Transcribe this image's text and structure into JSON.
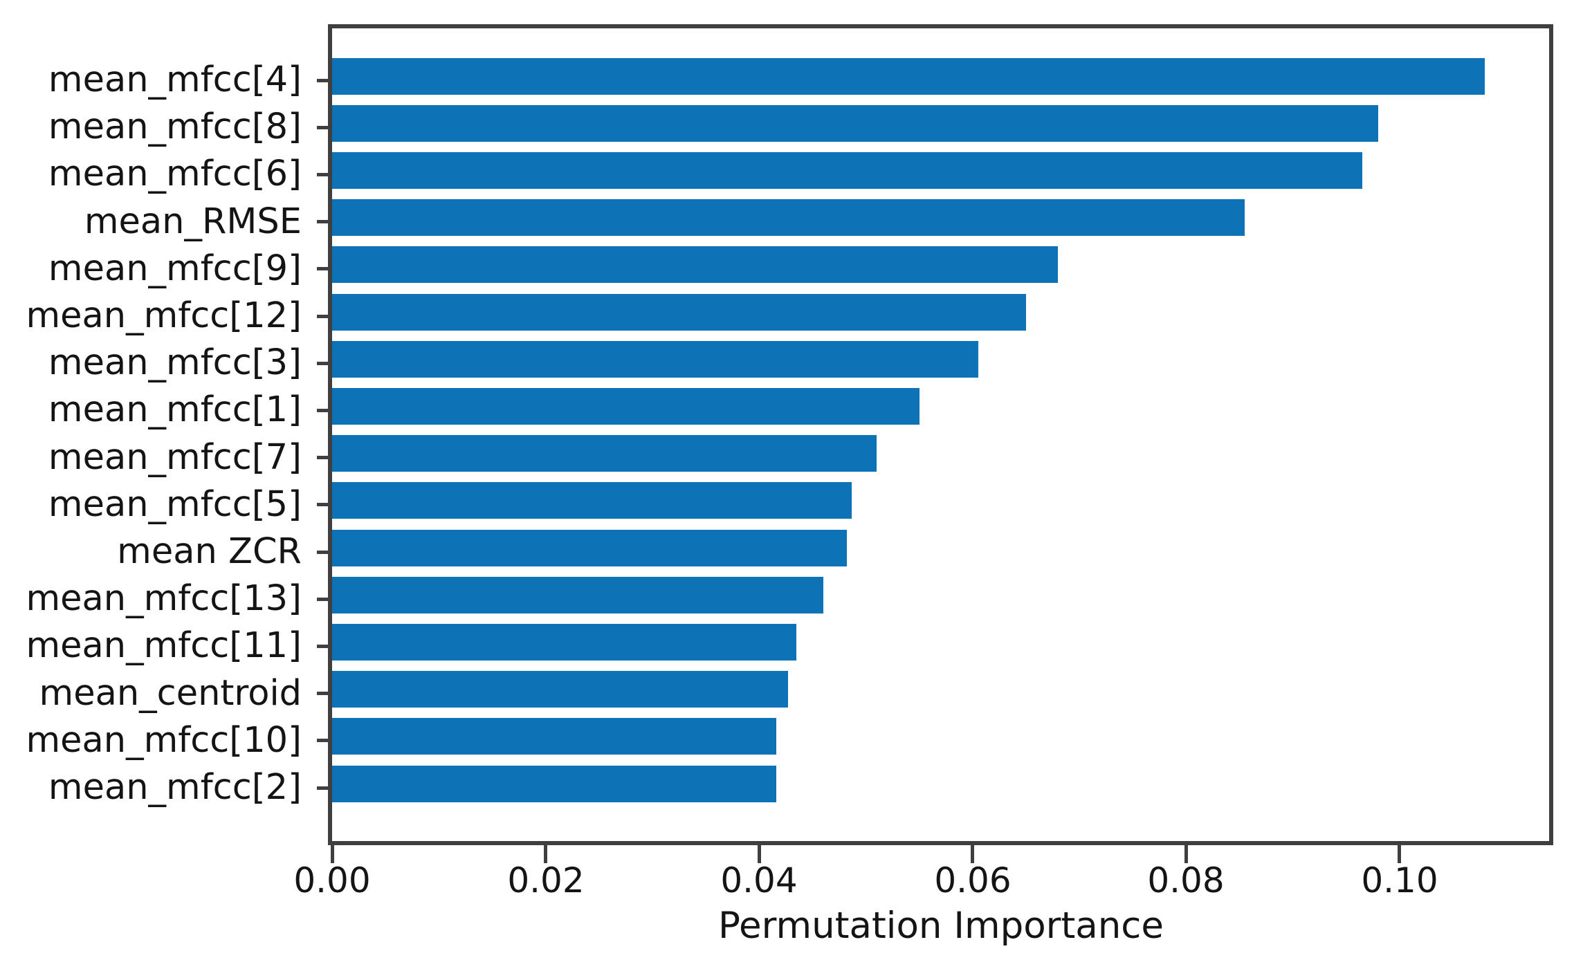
{
  "chart_data": {
    "type": "bar",
    "orientation": "horizontal",
    "title": "",
    "xlabel": "Permutation Importance",
    "ylabel": "",
    "categories": [
      "mean_mfcc[4]",
      "mean_mfcc[8]",
      "mean_mfcc[6]",
      "mean_RMSE",
      "mean_mfcc[9]",
      "mean_mfcc[12]",
      "mean_mfcc[3]",
      "mean_mfcc[1]",
      "mean_mfcc[7]",
      "mean_mfcc[5]",
      "mean ZCR",
      "mean_mfcc[13]",
      "mean_mfcc[11]",
      "mean_centroid",
      "mean_mfcc[10]",
      "mean_mfcc[2]"
    ],
    "values": [
      0.108,
      0.098,
      0.0965,
      0.0855,
      0.068,
      0.065,
      0.0605,
      0.055,
      0.051,
      0.0487,
      0.0482,
      0.046,
      0.0435,
      0.0427,
      0.0416,
      0.0416
    ],
    "xlim": [
      0,
      0.114
    ],
    "x_ticks": [
      0.0,
      0.02,
      0.04,
      0.06,
      0.08,
      0.1
    ],
    "x_tick_labels": [
      "0.00",
      "0.02",
      "0.04",
      "0.06",
      "0.08",
      "0.10"
    ],
    "grid": false,
    "legend": "none",
    "colors": {
      "bar": "#0d73b6",
      "spine": "#3f3f3f",
      "text": "#141414",
      "background": "#ffffff"
    }
  }
}
